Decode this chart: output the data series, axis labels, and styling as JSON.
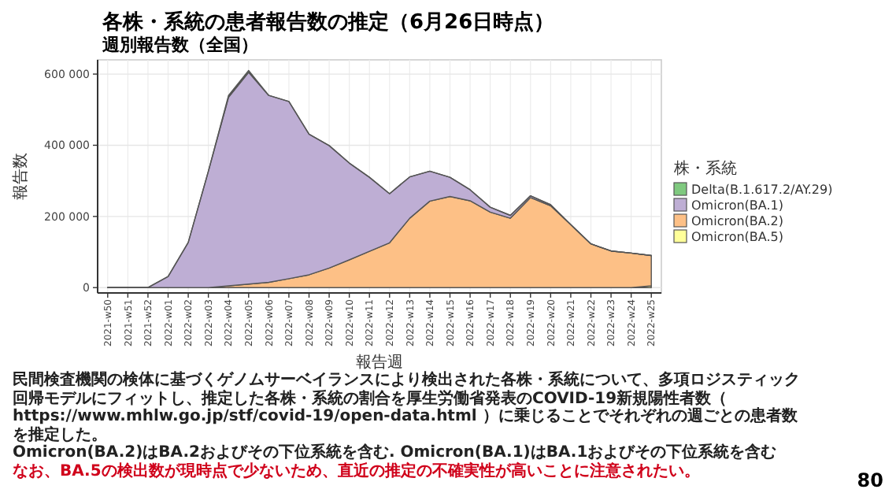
{
  "chart_data": {
    "type": "area",
    "stacked": true,
    "title": "各株・系統の患者報告数の推定（6月26日時点）",
    "subtitle": "週別報告数（全国）",
    "xlabel": "報告週",
    "ylabel": "報告数",
    "legend_title": "株・系統",
    "legend": "right",
    "grid": true,
    "categories": [
      "2021-w50",
      "2021-w51",
      "2021-w52",
      "2022-w01",
      "2022-w02",
      "2022-w03",
      "2022-w04",
      "2022-w05",
      "2022-w06",
      "2022-w07",
      "2022-w08",
      "2022-w09",
      "2022-w10",
      "2022-w11",
      "2022-w12",
      "2022-w13",
      "2022-w14",
      "2022-w15",
      "2022-w16",
      "2022-w17",
      "2022-w18",
      "2022-w19",
      "2022-w20",
      "2022-w21",
      "2022-w22",
      "2022-w23",
      "2022-w24",
      "2022-w25"
    ],
    "ylim": [
      -15000,
      640000
    ],
    "yticks": [
      {
        "value": 0,
        "label": "0"
      },
      {
        "value": 200000,
        "label": "200 000"
      },
      {
        "value": 400000,
        "label": "400 000"
      },
      {
        "value": 600000,
        "label": "600 000"
      }
    ],
    "series": [
      {
        "name": "Omicron(BA.5)",
        "color": "#ffff99",
        "values": [
          0,
          0,
          0,
          0,
          0,
          0,
          0,
          0,
          0,
          0,
          0,
          0,
          0,
          0,
          0,
          0,
          0,
          0,
          0,
          0,
          0,
          0,
          0,
          0,
          0,
          0,
          0,
          5000
        ]
      },
      {
        "name": "Omicron(BA.2)",
        "color": "#fdc086",
        "values": [
          0,
          0,
          0,
          0,
          0,
          0,
          5000,
          10000,
          15000,
          25000,
          36000,
          55000,
          78000,
          102000,
          126000,
          195000,
          243000,
          256000,
          244000,
          212000,
          195000,
          253000,
          230000,
          177000,
          123000,
          103000,
          97000,
          85000
        ]
      },
      {
        "name": "Omicron(BA.1)",
        "color": "#beaed4",
        "values": [
          0,
          0,
          0,
          31000,
          127000,
          327000,
          530000,
          595000,
          525000,
          498000,
          395000,
          344000,
          272000,
          208000,
          138000,
          116000,
          84000,
          54000,
          31000,
          14000,
          8000,
          5000,
          3000,
          0,
          0,
          0,
          0,
          0
        ]
      },
      {
        "name": "Delta(B.1.617.2/AY.29)",
        "color": "#7fc97f",
        "values": [
          0,
          0,
          0,
          0,
          0,
          0,
          5000,
          5000,
          0,
          0,
          0,
          0,
          0,
          0,
          0,
          0,
          0,
          0,
          0,
          0,
          0,
          0,
          0,
          0,
          0,
          0,
          0,
          0
        ]
      }
    ],
    "annotations": [
      "民間検査機関の検体に基づくゲノムサーベイランスにより検出された各株・系統について、多項ロジスティック回帰モデルにフィットし、推定した各株・系統の割合を厚生労働省発表のCOVID-19新規陽性者数（ https://www.mhlw.go.jp/stf/covid-19/open-data.html ）に乗じることでそれぞれの週ごとの患者数を推定した。",
      "Omicron(BA.2)はBA.2およびその下位系統を含む. Omicron(BA.1)はBA.1およびその下位系統を含む",
      "なお、BA.5の検出数が現時点で少ないため、直近の推定の不確実性が高いことに注意されたい。",
      "80"
    ]
  }
}
